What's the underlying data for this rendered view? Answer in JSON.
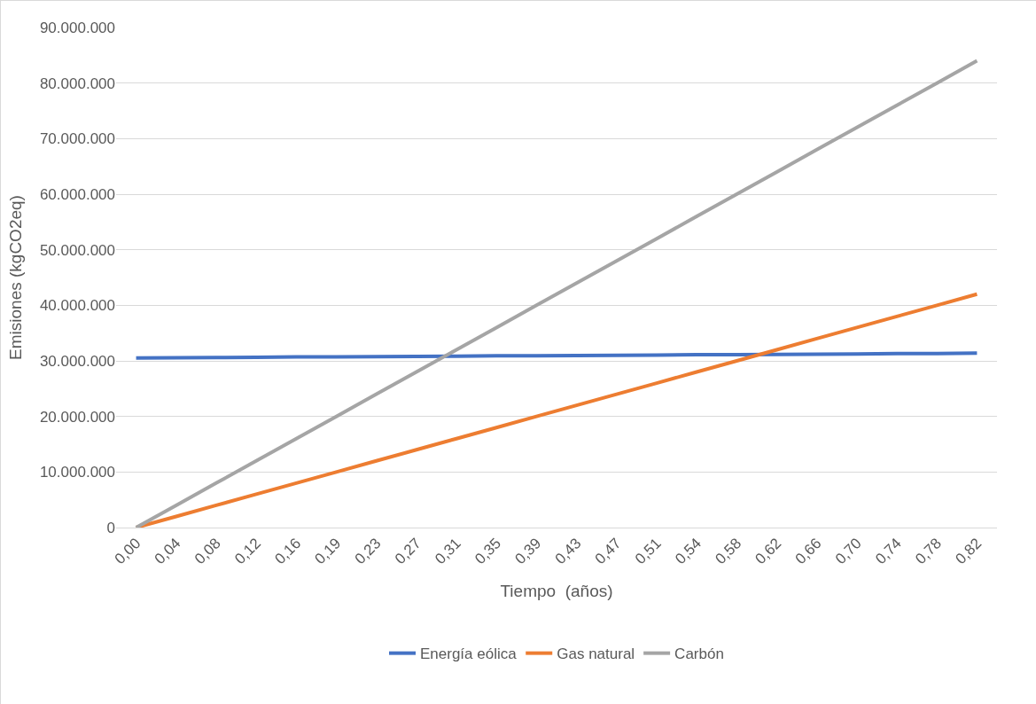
{
  "chart_data": {
    "type": "line",
    "xlabel": "Tiempo  (años)",
    "ylabel": "Emisiones (kgCO2eq)",
    "categories": [
      "0,00",
      "0,04",
      "0,08",
      "0,12",
      "0,16",
      "0,19",
      "0,23",
      "0,27",
      "0,31",
      "0,35",
      "0,39",
      "0,43",
      "0,47",
      "0,51",
      "0,54",
      "0,58",
      "0,62",
      "0,66",
      "0,70",
      "0,74",
      "0,78",
      "0,82"
    ],
    "series": [
      {
        "name": "Energía eólica",
        "color": "#4472c4",
        "values": [
          30500000,
          30550000,
          30600000,
          30650000,
          30700000,
          30700000,
          30750000,
          30800000,
          30850000,
          30900000,
          30900000,
          30950000,
          31000000,
          31050000,
          31100000,
          31100000,
          31150000,
          31200000,
          31250000,
          31300000,
          31300000,
          31400000
        ]
      },
      {
        "name": "Gas natural",
        "color": "#ed7d31",
        "values": [
          0,
          2000000,
          4000000,
          6000000,
          8000000,
          10000000,
          12000000,
          14000000,
          16000000,
          18000000,
          20000000,
          22000000,
          24000000,
          26000000,
          28000000,
          30000000,
          32000000,
          34000000,
          36000000,
          38000000,
          40000000,
          42000000
        ]
      },
      {
        "name": "Carbón",
        "color": "#a5a5a5",
        "values": [
          0,
          4000000,
          8000000,
          12000000,
          16000000,
          20000000,
          24000000,
          28000000,
          32000000,
          36000000,
          40000000,
          44000000,
          48000000,
          52000000,
          56000000,
          60000000,
          64000000,
          68000000,
          72000000,
          76000000,
          80000000,
          84000000
        ]
      }
    ],
    "ylim": [
      0,
      90000000
    ],
    "yticks": [
      0,
      {
        "value": 10000000,
        "label": "10.000.000"
      },
      {
        "value": 20000000,
        "label": "20.000.000"
      },
      {
        "value": 30000000,
        "label": "30.000.000"
      },
      {
        "value": 40000000,
        "label": "40.000.000"
      },
      {
        "value": 50000000,
        "label": "50.000.000"
      },
      {
        "value": 60000000,
        "label": "60.000.000"
      },
      {
        "value": 70000000,
        "label": "70.000.000"
      },
      {
        "value": 80000000,
        "label": "80.000.000"
      },
      {
        "value": 90000000,
        "label": "90.000.000"
      }
    ],
    "grid": "y",
    "legend": "bottom",
    "marker": "none",
    "line_style": "solid"
  }
}
